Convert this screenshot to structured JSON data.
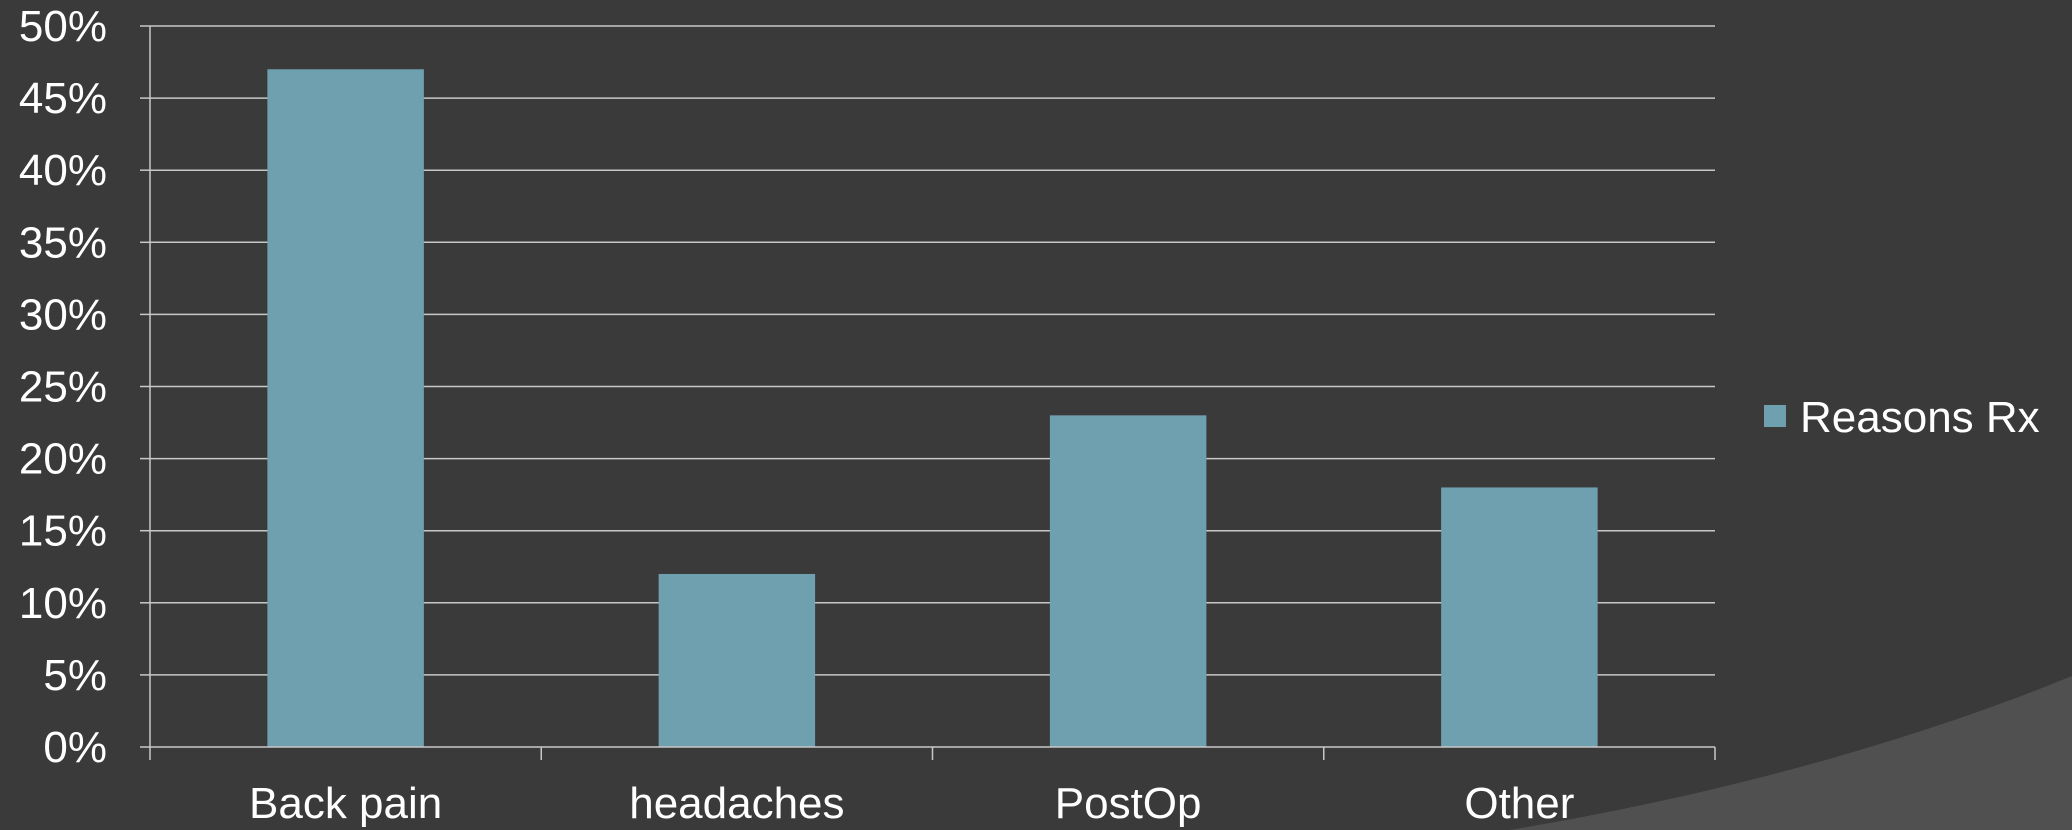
{
  "chart_data": {
    "type": "bar",
    "categories": [
      "Back pain",
      "headaches",
      "PostOp",
      "Other"
    ],
    "series": [
      {
        "name": "Reasons Rx",
        "values": [
          47,
          12,
          23,
          18
        ]
      }
    ],
    "y_ticks": [
      "0%",
      "5%",
      "10%",
      "15%",
      "20%",
      "25%",
      "30%",
      "35%",
      "40%",
      "45%",
      "50%"
    ],
    "ylim": [
      0,
      50
    ],
    "y_unit": "%",
    "grid": true,
    "legend_position": "right",
    "colors": {
      "background": "#3a3a3a",
      "bar": "#6fa0b0",
      "grid": "#c8c8c8",
      "text": "#ffffff",
      "corner_shape": "#505050"
    }
  }
}
